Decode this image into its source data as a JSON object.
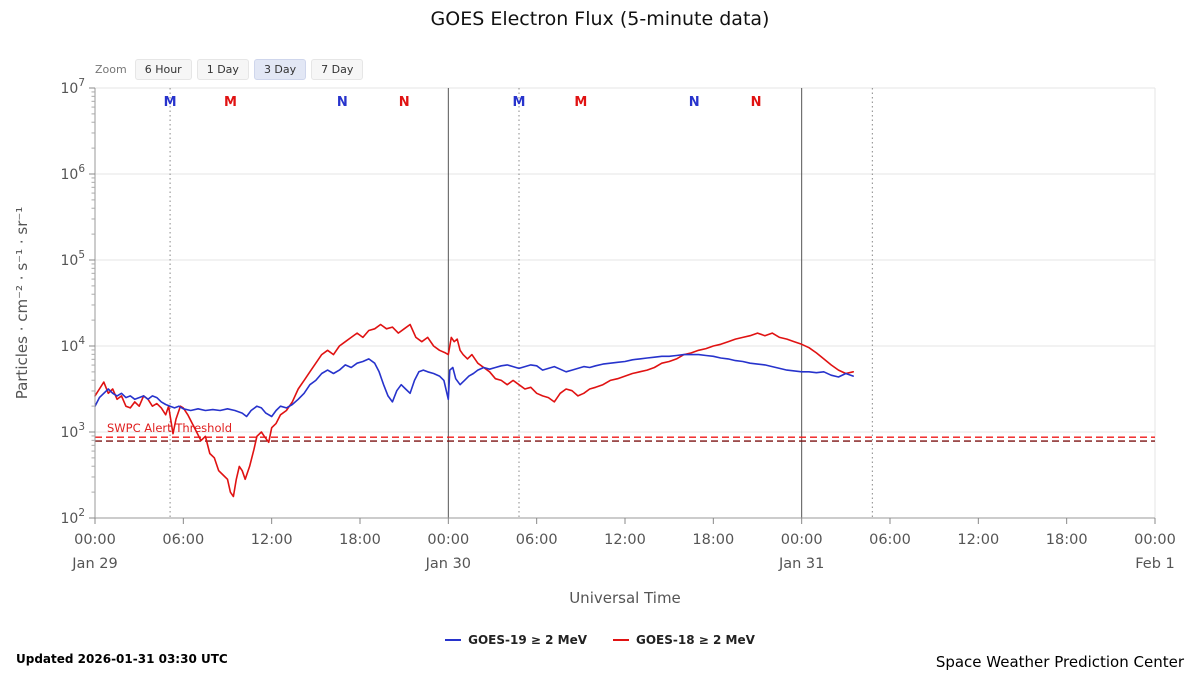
{
  "title": "GOES Electron Flux (5-minute data)",
  "zoom": {
    "label": "Zoom",
    "selected": "3 Day",
    "buttons": [
      {
        "label": "6 Hour"
      },
      {
        "label": "1 Day"
      },
      {
        "label": "3 Day"
      },
      {
        "label": "7 Day"
      }
    ]
  },
  "footer": {
    "updated": "Updated 2026-01-31 03:30 UTC",
    "credit": "Space Weather Prediction Center"
  },
  "chart_data": {
    "type": "line",
    "title": "GOES Electron Flux (5-minute data)",
    "xlabel": "Universal Time",
    "ylabel": "Particles · cm⁻² · s⁻¹ · sr⁻¹",
    "x_axis": {
      "unit": "hours from 2026-01-29 00:00 UTC",
      "range": [
        0,
        72
      ],
      "ticks": [
        {
          "hour": 0,
          "label": "00:00",
          "date": "Jan 29"
        },
        {
          "hour": 6,
          "label": "06:00"
        },
        {
          "hour": 12,
          "label": "12:00"
        },
        {
          "hour": 18,
          "label": "18:00"
        },
        {
          "hour": 24,
          "label": "00:00",
          "date": "Jan 30"
        },
        {
          "hour": 30,
          "label": "06:00"
        },
        {
          "hour": 36,
          "label": "12:00"
        },
        {
          "hour": 42,
          "label": "18:00"
        },
        {
          "hour": 48,
          "label": "00:00",
          "date": "Jan 31"
        },
        {
          "hour": 54,
          "label": "06:00"
        },
        {
          "hour": 60,
          "label": "12:00"
        },
        {
          "hour": 66,
          "label": "18:00"
        },
        {
          "hour": 72,
          "label": "00:00",
          "date": "Feb 1"
        }
      ]
    },
    "y_axis": {
      "scale": "log10",
      "range_exponents": [
        2,
        7
      ],
      "tick_exponents": [
        7,
        6,
        5,
        4,
        3,
        2
      ]
    },
    "day_boundary_hours": [
      24,
      48
    ],
    "satellite_midnight_dotted_hours": [
      5.1,
      28.8,
      52.8
    ],
    "top_markers": [
      {
        "hour": 5.1,
        "label": "M",
        "sat": "GOES-19",
        "color": "#2733cc"
      },
      {
        "hour": 9.2,
        "label": "M",
        "sat": "GOES-18",
        "color": "#e01212"
      },
      {
        "hour": 16.8,
        "label": "N",
        "sat": "GOES-19",
        "color": "#2733cc"
      },
      {
        "hour": 21.0,
        "label": "N",
        "sat": "GOES-18",
        "color": "#e01212"
      },
      {
        "hour": 28.8,
        "label": "M",
        "sat": "GOES-19",
        "color": "#2733cc"
      },
      {
        "hour": 33.0,
        "label": "M",
        "sat": "GOES-18",
        "color": "#e01212"
      },
      {
        "hour": 40.7,
        "label": "N",
        "sat": "GOES-19",
        "color": "#2733cc"
      },
      {
        "hour": 44.9,
        "label": "N",
        "sat": "GOES-18",
        "color": "#e01212"
      }
    ],
    "threshold": {
      "label": "SWPC Alert Threshold",
      "label_color": "#e02020",
      "lines": [
        {
          "color": "#ef1a1a",
          "log_value": 2.94
        },
        {
          "color": "#7b1010",
          "log_value": 2.895
        }
      ]
    },
    "series": [
      {
        "name": "GOES-19 ≥ 2 MeV",
        "color": "#2733cc",
        "points": [
          [
            0,
            3.3
          ],
          [
            0.3,
            3.4
          ],
          [
            0.6,
            3.45
          ],
          [
            0.9,
            3.5
          ],
          [
            1.2,
            3.45
          ],
          [
            1.5,
            3.42
          ],
          [
            1.8,
            3.45
          ],
          [
            2.1,
            3.4
          ],
          [
            2.4,
            3.42
          ],
          [
            2.7,
            3.38
          ],
          [
            3,
            3.4
          ],
          [
            3.3,
            3.42
          ],
          [
            3.6,
            3.38
          ],
          [
            3.9,
            3.42
          ],
          [
            4.2,
            3.4
          ],
          [
            4.5,
            3.35
          ],
          [
            4.8,
            3.32
          ],
          [
            5.1,
            3.3
          ],
          [
            5.4,
            3.28
          ],
          [
            5.7,
            3.3
          ],
          [
            6,
            3.27
          ],
          [
            6.5,
            3.25
          ],
          [
            7,
            3.27
          ],
          [
            7.5,
            3.25
          ],
          [
            8,
            3.26
          ],
          [
            8.5,
            3.25
          ],
          [
            9,
            3.27
          ],
          [
            9.5,
            3.25
          ],
          [
            10,
            3.22
          ],
          [
            10.3,
            3.18
          ],
          [
            10.6,
            3.25
          ],
          [
            11,
            3.3
          ],
          [
            11.3,
            3.28
          ],
          [
            11.6,
            3.22
          ],
          [
            12,
            3.18
          ],
          [
            12.3,
            3.25
          ],
          [
            12.6,
            3.3
          ],
          [
            13,
            3.28
          ],
          [
            13.4,
            3.32
          ],
          [
            13.8,
            3.38
          ],
          [
            14.2,
            3.45
          ],
          [
            14.6,
            3.55
          ],
          [
            15,
            3.6
          ],
          [
            15.4,
            3.68
          ],
          [
            15.8,
            3.72
          ],
          [
            16.2,
            3.68
          ],
          [
            16.6,
            3.72
          ],
          [
            17,
            3.78
          ],
          [
            17.4,
            3.75
          ],
          [
            17.8,
            3.8
          ],
          [
            18.2,
            3.82
          ],
          [
            18.6,
            3.85
          ],
          [
            19,
            3.8
          ],
          [
            19.3,
            3.7
          ],
          [
            19.6,
            3.55
          ],
          [
            19.9,
            3.42
          ],
          [
            20.2,
            3.35
          ],
          [
            20.5,
            3.48
          ],
          [
            20.8,
            3.55
          ],
          [
            21.1,
            3.5
          ],
          [
            21.4,
            3.45
          ],
          [
            21.7,
            3.6
          ],
          [
            22,
            3.7
          ],
          [
            22.3,
            3.72
          ],
          [
            22.6,
            3.7
          ],
          [
            23,
            3.68
          ],
          [
            23.4,
            3.65
          ],
          [
            23.7,
            3.6
          ],
          [
            23.9,
            3.45
          ],
          [
            24,
            3.38
          ],
          [
            24.1,
            3.72
          ],
          [
            24.3,
            3.75
          ],
          [
            24.5,
            3.62
          ],
          [
            24.8,
            3.55
          ],
          [
            25.1,
            3.6
          ],
          [
            25.4,
            3.65
          ],
          [
            25.7,
            3.68
          ],
          [
            26,
            3.72
          ],
          [
            26.4,
            3.75
          ],
          [
            26.8,
            3.73
          ],
          [
            27.2,
            3.75
          ],
          [
            27.6,
            3.77
          ],
          [
            28,
            3.78
          ],
          [
            28.4,
            3.76
          ],
          [
            28.8,
            3.74
          ],
          [
            29.2,
            3.76
          ],
          [
            29.6,
            3.78
          ],
          [
            30,
            3.77
          ],
          [
            30.4,
            3.72
          ],
          [
            30.8,
            3.74
          ],
          [
            31.2,
            3.76
          ],
          [
            31.6,
            3.73
          ],
          [
            32,
            3.7
          ],
          [
            32.4,
            3.72
          ],
          [
            32.8,
            3.74
          ],
          [
            33.2,
            3.76
          ],
          [
            33.6,
            3.75
          ],
          [
            34,
            3.77
          ],
          [
            34.5,
            3.79
          ],
          [
            35,
            3.8
          ],
          [
            35.5,
            3.81
          ],
          [
            36,
            3.82
          ],
          [
            36.5,
            3.84
          ],
          [
            37,
            3.85
          ],
          [
            37.5,
            3.86
          ],
          [
            38,
            3.87
          ],
          [
            38.5,
            3.88
          ],
          [
            39,
            3.88
          ],
          [
            39.5,
            3.89
          ],
          [
            40,
            3.9
          ],
          [
            40.5,
            3.9
          ],
          [
            41,
            3.9
          ],
          [
            41.5,
            3.89
          ],
          [
            42,
            3.88
          ],
          [
            42.5,
            3.86
          ],
          [
            43,
            3.85
          ],
          [
            43.5,
            3.83
          ],
          [
            44,
            3.82
          ],
          [
            44.5,
            3.8
          ],
          [
            45,
            3.79
          ],
          [
            45.5,
            3.78
          ],
          [
            46,
            3.76
          ],
          [
            46.5,
            3.74
          ],
          [
            47,
            3.72
          ],
          [
            47.5,
            3.71
          ],
          [
            48,
            3.7
          ],
          [
            48.5,
            3.7
          ],
          [
            49,
            3.69
          ],
          [
            49.5,
            3.7
          ],
          [
            50,
            3.66
          ],
          [
            50.5,
            3.64
          ],
          [
            51,
            3.68
          ],
          [
            51.5,
            3.65
          ]
        ]
      },
      {
        "name": "GOES-18 ≥ 2 MeV",
        "color": "#e01212",
        "points": [
          [
            0,
            3.42
          ],
          [
            0.3,
            3.5
          ],
          [
            0.6,
            3.58
          ],
          [
            0.9,
            3.45
          ],
          [
            1.2,
            3.5
          ],
          [
            1.5,
            3.38
          ],
          [
            1.8,
            3.42
          ],
          [
            2.1,
            3.3
          ],
          [
            2.4,
            3.28
          ],
          [
            2.7,
            3.35
          ],
          [
            3,
            3.3
          ],
          [
            3.3,
            3.42
          ],
          [
            3.6,
            3.38
          ],
          [
            3.9,
            3.3
          ],
          [
            4.2,
            3.33
          ],
          [
            4.5,
            3.28
          ],
          [
            4.8,
            3.2
          ],
          [
            5,
            3.3
          ],
          [
            5.3,
            2.98
          ],
          [
            5.5,
            3.15
          ],
          [
            5.8,
            3.3
          ],
          [
            6,
            3.28
          ],
          [
            6.3,
            3.2
          ],
          [
            6.6,
            3.1
          ],
          [
            6.9,
            3
          ],
          [
            7.2,
            2.9
          ],
          [
            7.5,
            2.95
          ],
          [
            7.8,
            2.75
          ],
          [
            8.1,
            2.7
          ],
          [
            8.4,
            2.55
          ],
          [
            8.7,
            2.5
          ],
          [
            9,
            2.45
          ],
          [
            9.2,
            2.3
          ],
          [
            9.4,
            2.25
          ],
          [
            9.6,
            2.45
          ],
          [
            9.8,
            2.6
          ],
          [
            10,
            2.55
          ],
          [
            10.2,
            2.45
          ],
          [
            10.5,
            2.6
          ],
          [
            10.8,
            2.8
          ],
          [
            11,
            2.95
          ],
          [
            11.3,
            3
          ],
          [
            11.5,
            2.95
          ],
          [
            11.8,
            2.88
          ],
          [
            12,
            3.05
          ],
          [
            12.3,
            3.1
          ],
          [
            12.6,
            3.2
          ],
          [
            13,
            3.25
          ],
          [
            13.4,
            3.35
          ],
          [
            13.8,
            3.5
          ],
          [
            14.2,
            3.6
          ],
          [
            14.6,
            3.7
          ],
          [
            15,
            3.8
          ],
          [
            15.4,
            3.9
          ],
          [
            15.8,
            3.95
          ],
          [
            16.2,
            3.9
          ],
          [
            16.6,
            4
          ],
          [
            17,
            4.05
          ],
          [
            17.4,
            4.1
          ],
          [
            17.8,
            4.15
          ],
          [
            18.2,
            4.1
          ],
          [
            18.6,
            4.18
          ],
          [
            19,
            4.2
          ],
          [
            19.4,
            4.25
          ],
          [
            19.8,
            4.2
          ],
          [
            20.2,
            4.22
          ],
          [
            20.6,
            4.15
          ],
          [
            21,
            4.2
          ],
          [
            21.4,
            4.25
          ],
          [
            21.8,
            4.1
          ],
          [
            22.2,
            4.05
          ],
          [
            22.6,
            4.1
          ],
          [
            23,
            4
          ],
          [
            23.4,
            3.95
          ],
          [
            23.8,
            3.92
          ],
          [
            24,
            3.9
          ],
          [
            24.2,
            4.1
          ],
          [
            24.4,
            4.05
          ],
          [
            24.6,
            4.08
          ],
          [
            24.8,
            3.95
          ],
          [
            25,
            3.9
          ],
          [
            25.3,
            3.85
          ],
          [
            25.6,
            3.9
          ],
          [
            26,
            3.8
          ],
          [
            26.4,
            3.75
          ],
          [
            26.8,
            3.7
          ],
          [
            27.2,
            3.62
          ],
          [
            27.6,
            3.6
          ],
          [
            28,
            3.55
          ],
          [
            28.4,
            3.6
          ],
          [
            28.8,
            3.55
          ],
          [
            29.2,
            3.5
          ],
          [
            29.6,
            3.52
          ],
          [
            30,
            3.45
          ],
          [
            30.4,
            3.42
          ],
          [
            30.8,
            3.4
          ],
          [
            31.2,
            3.35
          ],
          [
            31.6,
            3.45
          ],
          [
            32,
            3.5
          ],
          [
            32.4,
            3.48
          ],
          [
            32.8,
            3.42
          ],
          [
            33.2,
            3.45
          ],
          [
            33.6,
            3.5
          ],
          [
            34,
            3.52
          ],
          [
            34.5,
            3.55
          ],
          [
            35,
            3.6
          ],
          [
            35.5,
            3.62
          ],
          [
            36,
            3.65
          ],
          [
            36.5,
            3.68
          ],
          [
            37,
            3.7
          ],
          [
            37.5,
            3.72
          ],
          [
            38,
            3.75
          ],
          [
            38.5,
            3.8
          ],
          [
            39,
            3.82
          ],
          [
            39.5,
            3.85
          ],
          [
            40,
            3.9
          ],
          [
            40.5,
            3.92
          ],
          [
            41,
            3.95
          ],
          [
            41.5,
            3.97
          ],
          [
            42,
            4
          ],
          [
            42.5,
            4.02
          ],
          [
            43,
            4.05
          ],
          [
            43.5,
            4.08
          ],
          [
            44,
            4.1
          ],
          [
            44.5,
            4.12
          ],
          [
            45,
            4.15
          ],
          [
            45.5,
            4.12
          ],
          [
            46,
            4.15
          ],
          [
            46.5,
            4.1
          ],
          [
            47,
            4.08
          ],
          [
            47.5,
            4.05
          ],
          [
            48,
            4.02
          ],
          [
            48.5,
            3.98
          ],
          [
            49,
            3.92
          ],
          [
            49.5,
            3.85
          ],
          [
            50,
            3.78
          ],
          [
            50.5,
            3.72
          ],
          [
            51,
            3.68
          ],
          [
            51.5,
            3.7
          ]
        ]
      }
    ]
  }
}
